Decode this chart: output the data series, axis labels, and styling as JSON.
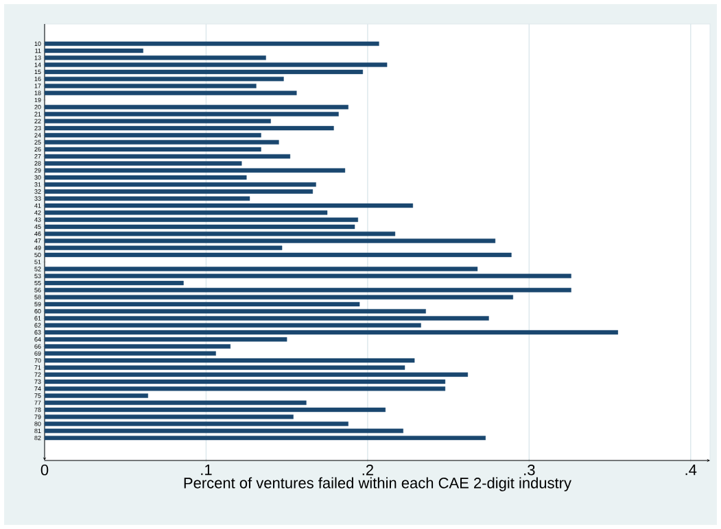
{
  "chart_data": {
    "type": "bar",
    "orientation": "horizontal",
    "xlabel": "Percent of ventures failed within each CAE 2-digit industry",
    "categories": [
      "10",
      "11",
      "13",
      "14",
      "15",
      "16",
      "17",
      "18",
      "19",
      "20",
      "21",
      "22",
      "23",
      "24",
      "25",
      "26",
      "27",
      "28",
      "29",
      "30",
      "31",
      "32",
      "33",
      "41",
      "42",
      "43",
      "45",
      "46",
      "47",
      "49",
      "50",
      "51",
      "52",
      "53",
      "55",
      "56",
      "58",
      "59",
      "60",
      "61",
      "62",
      "63",
      "64",
      "66",
      "69",
      "70",
      "71",
      "72",
      "73",
      "74",
      "75",
      "77",
      "78",
      "79",
      "80",
      "81",
      "82"
    ],
    "values": [
      0.207,
      0.061,
      0.137,
      0.212,
      0.197,
      0.148,
      0.131,
      0.156,
      null,
      0.188,
      0.182,
      0.14,
      0.179,
      0.134,
      0.145,
      0.134,
      0.152,
      0.122,
      0.186,
      0.125,
      0.168,
      0.166,
      0.127,
      0.228,
      0.175,
      0.194,
      0.192,
      0.217,
      0.279,
      0.147,
      0.289,
      null,
      0.268,
      0.326,
      0.086,
      0.326,
      0.29,
      0.195,
      0.236,
      0.275,
      0.233,
      0.355,
      0.15,
      0.115,
      0.106,
      0.229,
      0.223,
      0.262,
      0.248,
      0.248,
      0.064,
      0.162,
      0.211,
      0.154,
      0.188,
      0.222,
      0.273
    ],
    "color": "#1a476f",
    "xlim": [
      0,
      0.412
    ],
    "xticks": [
      {
        "value": 0,
        "label": "0"
      },
      {
        "value": 0.1,
        "label": ".1"
      },
      {
        "value": 0.2,
        "label": ".2"
      },
      {
        "value": 0.3,
        "label": ".3"
      },
      {
        "value": 0.4,
        "label": ".4"
      }
    ],
    "grid": "x"
  }
}
